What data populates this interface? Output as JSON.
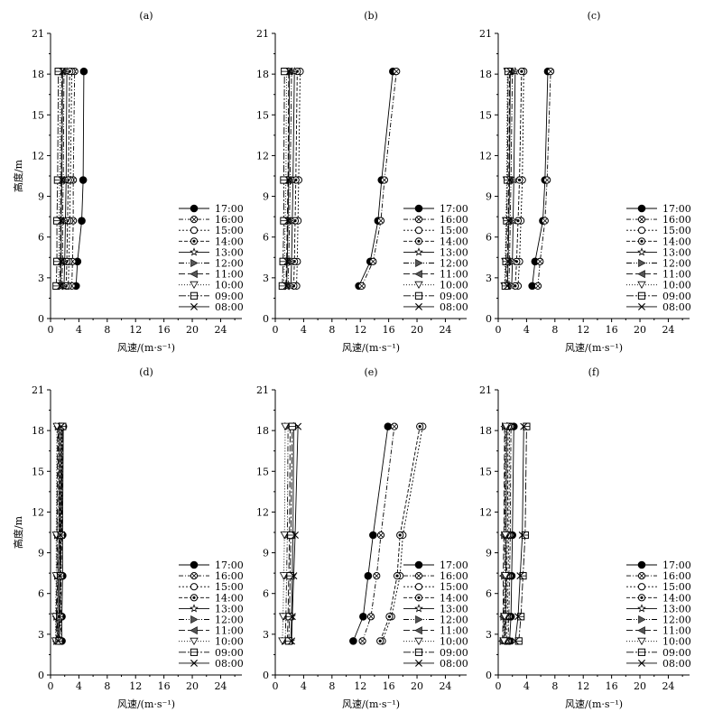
{
  "chart_data": [
    {
      "type": "line",
      "panel_label": "(a)",
      "xlabel": "风速/(m·s⁻¹)",
      "ylabel": "高度/m",
      "xlim": [
        0,
        27
      ],
      "ylim": [
        0,
        21
      ],
      "xticks": [
        0,
        4,
        8,
        12,
        16,
        20,
        24
      ],
      "yticks": [
        0,
        3,
        6,
        9,
        12,
        15,
        18,
        21
      ],
      "heights": [
        2.4,
        4.2,
        7.2,
        10.2,
        18.2
      ],
      "series": [
        {
          "name": "17:00",
          "values": [
            3.6,
            3.8,
            4.4,
            4.6,
            4.7
          ]
        },
        {
          "name": "16:00",
          "values": [
            3.0,
            3.1,
            3.2,
            3.2,
            3.4
          ]
        },
        {
          "name": "15:00",
          "values": [
            2.5,
            2.6,
            2.7,
            2.8,
            3.0
          ]
        },
        {
          "name": "14:00",
          "values": [
            2.2,
            2.3,
            2.4,
            2.5,
            2.7
          ]
        },
        {
          "name": "13:00",
          "values": [
            1.9,
            2.0,
            2.1,
            2.2,
            2.3
          ]
        },
        {
          "name": "12:00",
          "values": [
            1.6,
            1.7,
            1.7,
            1.8,
            1.9
          ]
        },
        {
          "name": "11:00",
          "values": [
            1.3,
            1.4,
            1.4,
            1.5,
            1.6
          ]
        },
        {
          "name": "10:00",
          "values": [
            1.1,
            1.2,
            1.2,
            1.3,
            1.4
          ]
        },
        {
          "name": "09:00",
          "values": [
            0.8,
            0.9,
            0.9,
            1.0,
            1.1
          ]
        },
        {
          "name": "08:00",
          "values": [
            1.4,
            1.5,
            1.5,
            1.6,
            1.7
          ]
        }
      ]
    },
    {
      "type": "line",
      "panel_label": "(b)",
      "xlabel": "风速/(m·s⁻¹)",
      "ylabel": "",
      "xlim": [
        0,
        27
      ],
      "ylim": [
        0,
        21
      ],
      "xticks": [
        0,
        4,
        8,
        12,
        16,
        20,
        24
      ],
      "yticks": [
        0,
        3,
        6,
        9,
        12,
        15,
        18,
        21
      ],
      "heights": [
        2.4,
        4.2,
        7.2,
        10.2,
        18.2
      ],
      "series": [
        {
          "name": "17:00",
          "values": [
            11.8,
            13.4,
            14.5,
            15.0,
            16.6
          ]
        },
        {
          "name": "16:00",
          "values": [
            12.2,
            13.8,
            14.9,
            15.4,
            17.1
          ]
        },
        {
          "name": "15:00",
          "values": [
            3.0,
            3.1,
            3.2,
            3.3,
            3.5
          ]
        },
        {
          "name": "14:00",
          "values": [
            2.6,
            2.7,
            2.8,
            2.9,
            3.1
          ]
        },
        {
          "name": "13:00",
          "values": [
            2.2,
            2.3,
            2.4,
            2.5,
            2.7
          ]
        },
        {
          "name": "12:00",
          "values": [
            1.8,
            1.9,
            2.0,
            2.1,
            2.3
          ]
        },
        {
          "name": "11:00",
          "values": [
            1.5,
            1.6,
            1.7,
            1.8,
            1.9
          ]
        },
        {
          "name": "10:00",
          "values": [
            1.2,
            1.3,
            1.4,
            1.5,
            1.6
          ]
        },
        {
          "name": "09:00",
          "values": [
            1.0,
            1.1,
            1.2,
            1.2,
            1.3
          ]
        },
        {
          "name": "08:00",
          "values": [
            1.6,
            1.7,
            1.8,
            1.9,
            2.0
          ]
        }
      ]
    },
    {
      "type": "line",
      "panel_label": "(c)",
      "xlabel": "风速/(m·s⁻¹)",
      "ylabel": "",
      "xlim": [
        0,
        27
      ],
      "ylim": [
        0,
        21
      ],
      "xticks": [
        0,
        4,
        8,
        12,
        16,
        20,
        24
      ],
      "yticks": [
        0,
        3,
        6,
        9,
        12,
        15,
        18,
        21
      ],
      "heights": [
        2.4,
        4.2,
        7.2,
        10.2,
        18.2
      ],
      "series": [
        {
          "name": "17:00",
          "values": [
            4.8,
            5.2,
            6.3,
            6.6,
            7.0
          ]
        },
        {
          "name": "16:00",
          "values": [
            5.6,
            5.9,
            6.6,
            6.9,
            7.4
          ]
        },
        {
          "name": "15:00",
          "values": [
            2.8,
            3.0,
            3.2,
            3.4,
            3.6
          ]
        },
        {
          "name": "14:00",
          "values": [
            2.4,
            2.6,
            2.8,
            3.0,
            3.3
          ]
        },
        {
          "name": "13:00",
          "values": [
            1.9,
            2.0,
            2.1,
            2.2,
            2.4
          ]
        },
        {
          "name": "12:00",
          "values": [
            1.5,
            1.6,
            1.7,
            1.8,
            2.0
          ]
        },
        {
          "name": "11:00",
          "values": [
            1.2,
            1.3,
            1.4,
            1.5,
            1.6
          ]
        },
        {
          "name": "10:00",
          "values": [
            0.9,
            1.0,
            1.1,
            1.2,
            1.3
          ]
        },
        {
          "name": "09:00",
          "values": [
            1.0,
            1.1,
            1.2,
            1.3,
            1.4
          ]
        },
        {
          "name": "08:00",
          "values": [
            1.3,
            1.4,
            1.5,
            1.6,
            1.7
          ]
        }
      ]
    },
    {
      "type": "line",
      "panel_label": "(d)",
      "xlabel": "风速/(m·s⁻¹)",
      "ylabel": "高度/m",
      "xlim": [
        0,
        27
      ],
      "ylim": [
        0,
        21
      ],
      "xticks": [
        0,
        4,
        8,
        12,
        16,
        20,
        24
      ],
      "yticks": [
        0,
        3,
        6,
        9,
        12,
        15,
        18,
        21
      ],
      "heights": [
        2.5,
        4.3,
        7.3,
        10.3,
        18.3
      ],
      "series": [
        {
          "name": "17:00",
          "values": [
            1.6,
            1.6,
            1.7,
            1.7,
            1.8
          ]
        },
        {
          "name": "16:00",
          "values": [
            1.4,
            1.5,
            1.5,
            1.6,
            1.7
          ]
        },
        {
          "name": "15:00",
          "values": [
            1.3,
            1.4,
            1.4,
            1.5,
            1.6
          ]
        },
        {
          "name": "14:00",
          "values": [
            1.1,
            1.2,
            1.3,
            1.3,
            1.4
          ]
        },
        {
          "name": "13:00",
          "values": [
            1.0,
            1.0,
            1.1,
            1.2,
            1.2
          ]
        },
        {
          "name": "12:00",
          "values": [
            0.9,
            0.9,
            1.0,
            1.0,
            1.1
          ]
        },
        {
          "name": "11:00",
          "values": [
            0.8,
            0.8,
            0.9,
            0.9,
            1.0
          ]
        },
        {
          "name": "10:00",
          "values": [
            0.7,
            0.7,
            0.8,
            0.8,
            0.9
          ]
        },
        {
          "name": "09:00",
          "values": [
            1.2,
            1.3,
            1.4,
            1.5,
            1.7
          ]
        },
        {
          "name": "08:00",
          "values": [
            1.1,
            1.2,
            1.3,
            1.4,
            1.5
          ]
        }
      ]
    },
    {
      "type": "line",
      "panel_label": "(e)",
      "xlabel": "风速/(m·s⁻¹)",
      "ylabel": "",
      "xlim": [
        0,
        27
      ],
      "ylim": [
        0,
        21
      ],
      "xticks": [
        0,
        4,
        8,
        12,
        16,
        20,
        24
      ],
      "yticks": [
        0,
        3,
        6,
        9,
        12,
        15,
        18,
        21
      ],
      "heights": [
        2.5,
        4.3,
        7.3,
        10.3,
        18.3
      ],
      "series": [
        {
          "name": "17:00",
          "values": [
            11.0,
            12.4,
            13.1,
            13.8,
            15.9
          ]
        },
        {
          "name": "16:00",
          "values": [
            12.3,
            13.5,
            14.3,
            14.9,
            16.8
          ]
        },
        {
          "name": "15:00",
          "values": [
            15.1,
            16.4,
            17.6,
            18.0,
            20.8
          ]
        },
        {
          "name": "14:00",
          "values": [
            14.8,
            16.1,
            17.2,
            17.6,
            20.4
          ]
        },
        {
          "name": "13:00",
          "values": [
            2.2,
            2.3,
            2.4,
            2.5,
            2.6
          ]
        },
        {
          "name": "12:00",
          "values": [
            1.4,
            1.5,
            1.6,
            1.7,
            1.8
          ]
        },
        {
          "name": "11:00",
          "values": [
            1.7,
            1.8,
            1.9,
            2.0,
            2.1
          ]
        },
        {
          "name": "10:00",
          "values": [
            1.0,
            1.1,
            1.2,
            1.3,
            1.4
          ]
        },
        {
          "name": "09:00",
          "values": [
            1.9,
            2.0,
            2.1,
            2.2,
            2.4
          ]
        },
        {
          "name": "08:00",
          "values": [
            2.3,
            2.4,
            2.6,
            2.8,
            3.2
          ]
        }
      ]
    },
    {
      "type": "line",
      "panel_label": "(f)",
      "xlabel": "风速/(m·s⁻¹)",
      "ylabel": "",
      "xlim": [
        0,
        27
      ],
      "ylim": [
        0,
        21
      ],
      "xticks": [
        0,
        4,
        8,
        12,
        16,
        20,
        24
      ],
      "yticks": [
        0,
        3,
        6,
        9,
        12,
        15,
        18,
        21
      ],
      "heights": [
        2.5,
        4.3,
        7.3,
        10.3,
        18.3
      ],
      "series": [
        {
          "name": "17:00",
          "values": [
            1.6,
            1.8,
            1.9,
            2.0,
            2.2
          ]
        },
        {
          "name": "16:00",
          "values": [
            1.4,
            1.5,
            1.6,
            1.7,
            1.8
          ]
        },
        {
          "name": "15:00",
          "values": [
            1.2,
            1.3,
            1.4,
            1.5,
            1.6
          ]
        },
        {
          "name": "14:00",
          "values": [
            1.0,
            1.1,
            1.2,
            1.3,
            1.4
          ]
        },
        {
          "name": "13:00",
          "values": [
            0.9,
            1.0,
            1.1,
            1.1,
            1.2
          ]
        },
        {
          "name": "12:00",
          "values": [
            0.7,
            0.8,
            0.9,
            0.9,
            1.0
          ]
        },
        {
          "name": "11:00",
          "values": [
            0.6,
            0.7,
            0.7,
            0.8,
            0.9
          ]
        },
        {
          "name": "10:00",
          "values": [
            0.8,
            0.9,
            1.0,
            1.0,
            1.1
          ]
        },
        {
          "name": "09:00",
          "values": [
            2.9,
            3.2,
            3.5,
            3.8,
            4.0
          ]
        },
        {
          "name": "08:00",
          "values": [
            2.4,
            2.8,
            3.1,
            3.4,
            3.6
          ]
        }
      ]
    }
  ]
}
